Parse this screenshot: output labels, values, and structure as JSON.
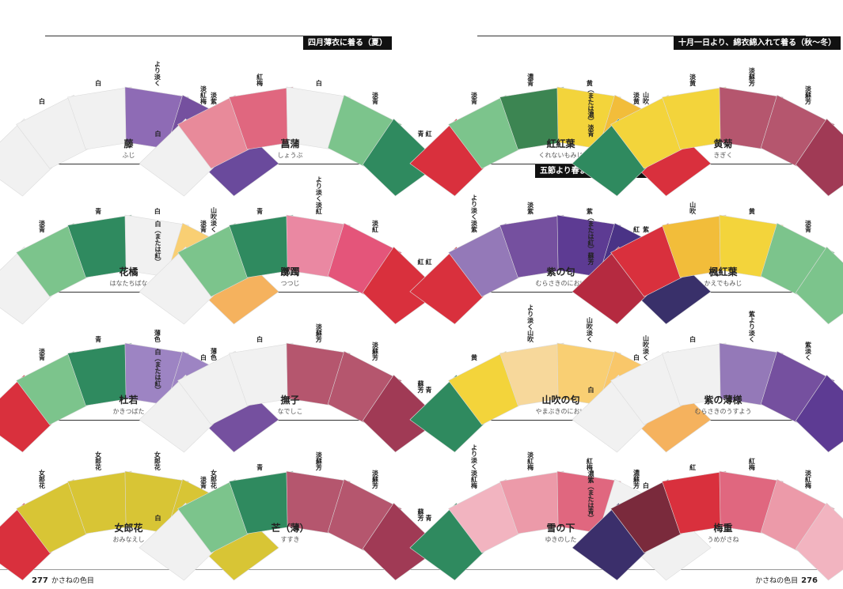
{
  "banners": [
    "四月薄衣に着る（夏）",
    "十月一日より、綿衣綿入れて着る（秋〜冬）",
    "五節より春まで着るいろいろ（春）"
  ],
  "footer": {
    "left_page": "277",
    "left_title": "かさねの色目",
    "right_title": "かさねの色目",
    "right_page": "276"
  },
  "entries": [
    {
      "name": "藤",
      "kana": "ふじ",
      "layers": [
        {
          "label": "白（または紅）",
          "color": "#f1f1f1"
        },
        {
          "label": "白",
          "color": "#f1f1f1"
        },
        {
          "label": "白",
          "color": "#f1f1f1"
        },
        {
          "label": "より淡く",
          "color": "#8e6bb5"
        },
        {
          "label": "淡紫",
          "color": "#75509f"
        },
        {
          "label": "淡紫",
          "color": "#6a4a9c"
        }
      ]
    },
    {
      "name": "菖蒲",
      "kana": "しょうぶ",
      "layers": [
        {
          "label": "白",
          "color": "#f1f1f1"
        },
        {
          "label": "淡紅梅",
          "color": "#e88a9a"
        },
        {
          "label": "紅梅",
          "color": "#e0677f"
        },
        {
          "label": "白",
          "color": "#f1f1f1"
        },
        {
          "label": "淡青",
          "color": "#7cc48c"
        },
        {
          "label": "青",
          "color": "#2f8a5f"
        }
      ]
    },
    {
      "name": "紅紅葉",
      "kana": "くれないもみじ",
      "layers": [
        {
          "label": "紅",
          "color": "#d9303d"
        },
        {
          "label": "淡青",
          "color": "#7cc48c"
        },
        {
          "label": "濃青",
          "color": "#3c8552"
        },
        {
          "label": "黄",
          "color": "#f3d43b"
        },
        {
          "label": "山吹",
          "color": "#f2bd3a"
        },
        {
          "label": "紅",
          "color": "#d9303d"
        }
      ]
    },
    {
      "name": "黄菊",
      "kana": "きぎく",
      "layers": [
        {
          "label": "（または濃）淡青",
          "color": "#2f8a5f"
        },
        {
          "label": "淡黄",
          "color": "#f3d43b"
        },
        {
          "label": "淡黄",
          "color": "#f3d43b"
        },
        {
          "label": "淡蘇芳",
          "color": "#b5566e"
        },
        {
          "label": "淡蘇芳",
          "color": "#b5566e"
        },
        {
          "label": "蘇芳",
          "color": "#a03a55"
        }
      ]
    },
    {
      "name": "花橘",
      "kana": "はなたちばな",
      "layers": [
        {
          "label": "白（または青）",
          "color": "#f1f1f1"
        },
        {
          "label": "淡青",
          "color": "#7cc48c"
        },
        {
          "label": "青",
          "color": "#2f8a5f"
        },
        {
          "label": "白",
          "color": "#f1f1f1"
        },
        {
          "label": "山吹淡く",
          "color": "#f9cf73"
        },
        {
          "label": "山吹濃く",
          "color": "#f5b25e"
        }
      ]
    },
    {
      "name": "躑躅",
      "kana": "つつじ",
      "layers": [
        {
          "label": "白（または紅）",
          "color": "#f1f1f1"
        },
        {
          "label": "淡青",
          "color": "#7cc48c"
        },
        {
          "label": "青",
          "color": "#2f8a5f"
        },
        {
          "label": "より淡く淡紅",
          "color": "#ea88a2"
        },
        {
          "label": "淡紅",
          "color": "#e4557a"
        },
        {
          "label": "紅",
          "color": "#d9303d"
        }
      ]
    },
    {
      "name": "紫の匂",
      "kana": "むらさきのにおい",
      "layers": [
        {
          "label": "紅",
          "color": "#d9303d"
        },
        {
          "label": "より淡く淡紫",
          "color": "#9479b8"
        },
        {
          "label": "淡紫",
          "color": "#75509f"
        },
        {
          "label": "紫",
          "color": "#5d3b93"
        },
        {
          "label": "紫",
          "color": "#4a3386"
        },
        {
          "label": "濃紫",
          "color": "#39306a"
        }
      ]
    },
    {
      "name": "楓紅葉",
      "kana": "かえでもみじ",
      "layers": [
        {
          "label": "（または紅）蘇芳",
          "color": "#b52a40"
        },
        {
          "label": "紅",
          "color": "#d9303d"
        },
        {
          "label": "山吹",
          "color": "#f2bd3a"
        },
        {
          "label": "黄",
          "color": "#f3d43b"
        },
        {
          "label": "淡青",
          "color": "#7cc48c"
        },
        {
          "label": "淡青",
          "color": "#7cc48c"
        }
      ]
    },
    {
      "name": "杜若",
      "kana": "かきつばた",
      "layers": [
        {
          "label": "紅",
          "color": "#d9303d"
        },
        {
          "label": "淡青",
          "color": "#7cc48c"
        },
        {
          "label": "青",
          "color": "#2f8a5f"
        },
        {
          "label": "薄色",
          "color": "#9d84c3"
        },
        {
          "label": "薄色",
          "color": "#9d84c3"
        },
        {
          "label": "淡紫",
          "color": "#75509f"
        }
      ]
    },
    {
      "name": "撫子",
      "kana": "なでしこ",
      "layers": [
        {
          "label": "白（または紅）",
          "color": "#f1f1f1"
        },
        {
          "label": "白",
          "color": "#f1f1f1"
        },
        {
          "label": "白",
          "color": "#f1f1f1"
        },
        {
          "label": "淡蘇芳",
          "color": "#b5566e"
        },
        {
          "label": "淡蘇芳",
          "color": "#b5566e"
        },
        {
          "label": "蘇芳",
          "color": "#a03a55"
        }
      ]
    },
    {
      "name": "山吹の匂",
      "kana": "やまぶきのにおい",
      "layers": [
        {
          "label": "青",
          "color": "#2f8a5f"
        },
        {
          "label": "黄",
          "color": "#f3d43b"
        },
        {
          "label": "より淡く山吹",
          "color": "#f7d89b"
        },
        {
          "label": "山吹淡く",
          "color": "#f9cf73"
        },
        {
          "label": "山吹淡く",
          "color": "#f9c76a"
        },
        {
          "label": "山吹淡く",
          "color": "#f5b25e"
        }
      ]
    },
    {
      "name": "紫の薄様",
      "kana": "むらさきのうすよう",
      "layers": [
        {
          "label": "白",
          "color": "#f1f1f1"
        },
        {
          "label": "白",
          "color": "#f1f1f1"
        },
        {
          "label": "白",
          "color": "#f1f1f1"
        },
        {
          "label": "紫より淡く",
          "color": "#9479b8"
        },
        {
          "label": "紫淡く",
          "color": "#75509f"
        },
        {
          "label": "紫",
          "color": "#5d3b93"
        }
      ]
    },
    {
      "name": "女郎花",
      "kana": "おみなえし",
      "layers": [
        {
          "label": "紅",
          "color": "#d9303d"
        },
        {
          "label": "女郎花",
          "color": "#d8c535"
        },
        {
          "label": "女郎花",
          "color": "#d8c535"
        },
        {
          "label": "女郎花",
          "color": "#d8c535"
        },
        {
          "label": "女郎花",
          "color": "#d8c535"
        },
        {
          "label": "女郎花",
          "color": "#d8c535"
        }
      ]
    },
    {
      "name": "芒（薄）",
      "kana": "すすき",
      "layers": [
        {
          "label": "白",
          "color": "#f1f1f1"
        },
        {
          "label": "淡青",
          "color": "#7cc48c"
        },
        {
          "label": "青",
          "color": "#2f8a5f"
        },
        {
          "label": "淡蘇芳",
          "color": "#b5566e"
        },
        {
          "label": "淡蘇芳",
          "color": "#b5566e"
        },
        {
          "label": "蘇芳",
          "color": "#a03a55"
        }
      ]
    },
    {
      "name": "雪の下",
      "kana": "ゆきのした",
      "layers": [
        {
          "label": "青",
          "color": "#2f8a5f"
        },
        {
          "label": "より淡く淡紅梅",
          "color": "#f2b4c0"
        },
        {
          "label": "淡紅梅",
          "color": "#ec9aa9"
        },
        {
          "label": "紅梅",
          "color": "#e0677f"
        },
        {
          "label": "白",
          "color": "#f1f1f1"
        },
        {
          "label": "白",
          "color": "#f1f1f1"
        }
      ]
    },
    {
      "name": "梅重",
      "kana": "うめがさね",
      "layers": [
        {
          "label": "濃紫（または青）",
          "color": "#3b2f6b"
        },
        {
          "label": "濃蘇芳",
          "color": "#7a2a3c"
        },
        {
          "label": "紅",
          "color": "#d9303d"
        },
        {
          "label": "紅梅",
          "color": "#e0677f"
        },
        {
          "label": "淡紅梅",
          "color": "#ec9aa9"
        },
        {
          "label": "より淡く淡紅梅",
          "color": "#f2b4c0"
        }
      ]
    }
  ]
}
